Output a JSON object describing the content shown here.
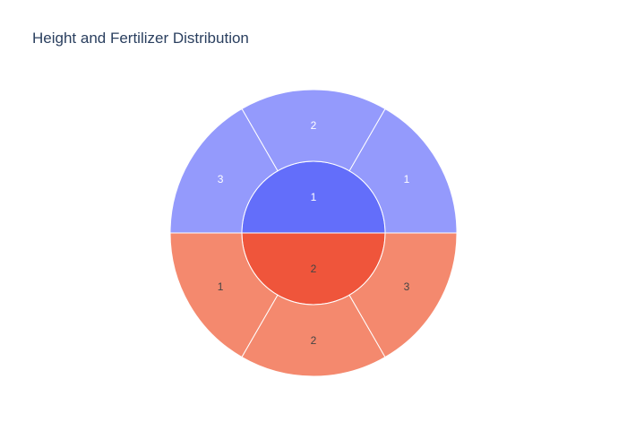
{
  "chart_data": {
    "type": "sunburst",
    "title": "Height and Fertilizer Distribution",
    "levels": [
      "Height",
      "Fertilizer"
    ],
    "nodes": [
      {
        "label": "1",
        "value": 3,
        "color": "#636efa",
        "children_color": "#949afc",
        "children": [
          {
            "label": "1",
            "value": 1
          },
          {
            "label": "2",
            "value": 1
          },
          {
            "label": "3",
            "value": 1
          }
        ]
      },
      {
        "label": "2",
        "value": 3,
        "color": "#ef553b",
        "children_color": "#f4896e",
        "children": [
          {
            "label": "1",
            "value": 1
          },
          {
            "label": "2",
            "value": 1
          },
          {
            "label": "3",
            "value": 1
          }
        ]
      }
    ],
    "label_colors": {
      "light": "#ffffff",
      "dark": "#444444"
    },
    "border_color": "#ffffff"
  }
}
